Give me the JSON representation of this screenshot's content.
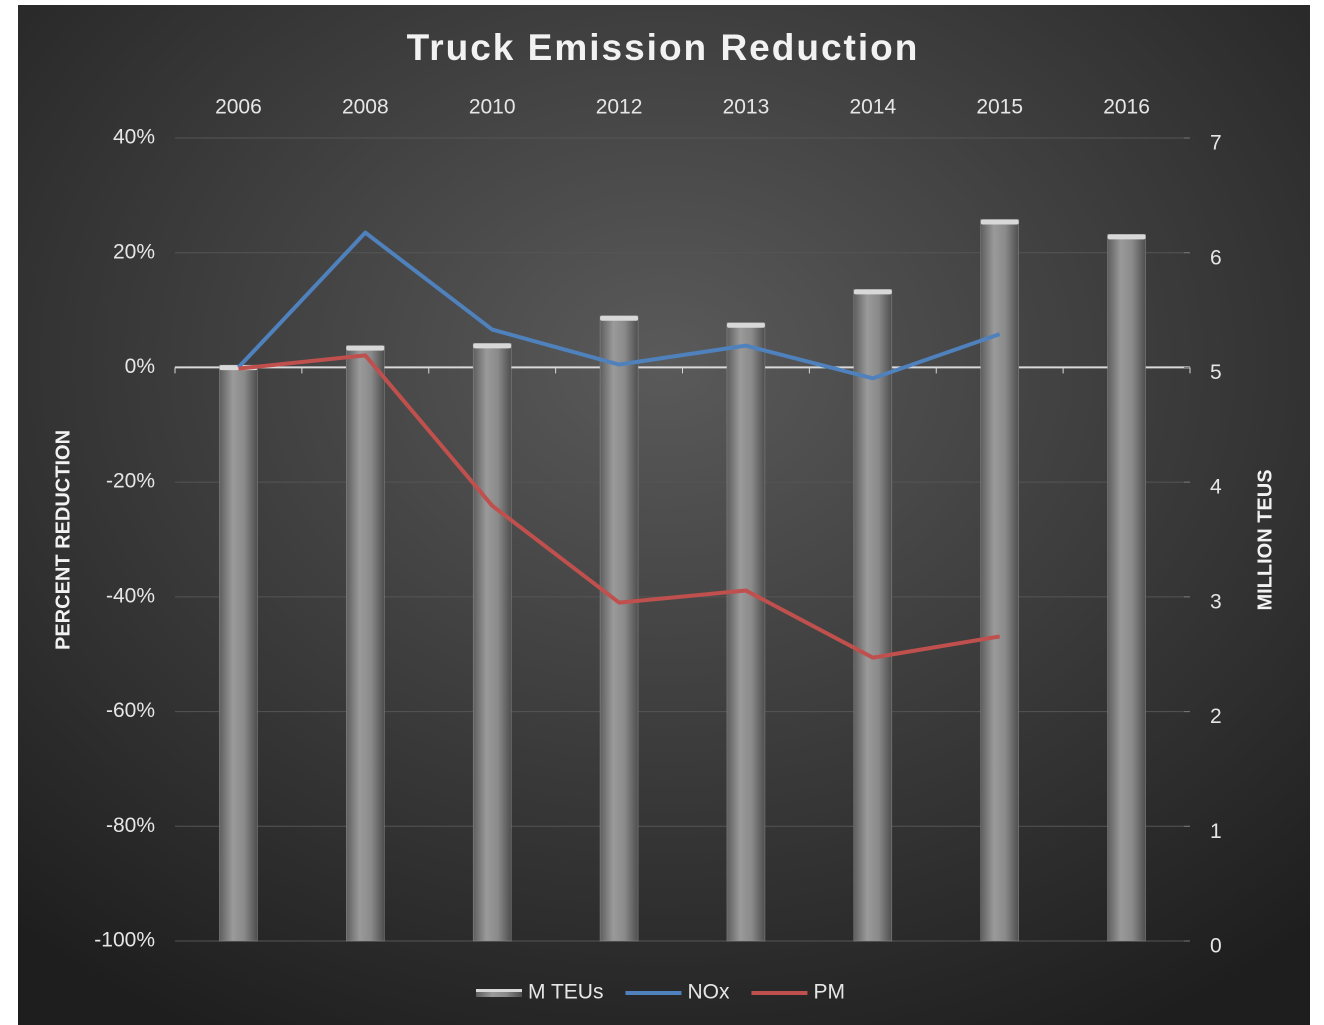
{
  "chart_data": {
    "type": "bar",
    "title": "Truck Emission Reduction",
    "y_label": "PERCENT REDUCTION",
    "y2_label": "MILLION TEUS",
    "categories": [
      "2006",
      "2008",
      "2010",
      "2012",
      "2013",
      "2014",
      "2015",
      "2016"
    ],
    "series": [
      {
        "name": "M TEUs",
        "type": "bar",
        "axis": "y2",
        "color": "#8c8c8c",
        "values": [
          5.02,
          5.19,
          5.21,
          5.45,
          5.39,
          5.68,
          6.29,
          6.16
        ]
      },
      {
        "name": "NOx",
        "type": "line",
        "axis": "y",
        "color": "#4f81bd",
        "values": [
          0,
          23.5,
          6.6,
          0.5,
          3.8,
          -1.9,
          5.8,
          null
        ]
      },
      {
        "name": "PM",
        "type": "line",
        "axis": "y",
        "color": "#c0504d",
        "values": [
          -0.2,
          2.1,
          -24.1,
          -41,
          -38.9,
          -50.6,
          -46.9,
          null
        ]
      }
    ],
    "ylim": [
      -100,
      40
    ],
    "yticks": [
      {
        "value": -100,
        "label": "-100%"
      },
      {
        "value": -80,
        "label": "-80%"
      },
      {
        "value": -60,
        "label": "-60%"
      },
      {
        "value": -40,
        "label": "-40%"
      },
      {
        "value": -20,
        "label": "-20%"
      },
      {
        "value": 0,
        "label": "0%"
      },
      {
        "value": 20,
        "label": "20%"
      },
      {
        "value": 40,
        "label": "40%"
      }
    ],
    "y2lim": [
      0,
      7
    ],
    "y2ticks": [
      0,
      1,
      2,
      3,
      4,
      5,
      6,
      7
    ],
    "grid": true,
    "legend": "bottom"
  }
}
